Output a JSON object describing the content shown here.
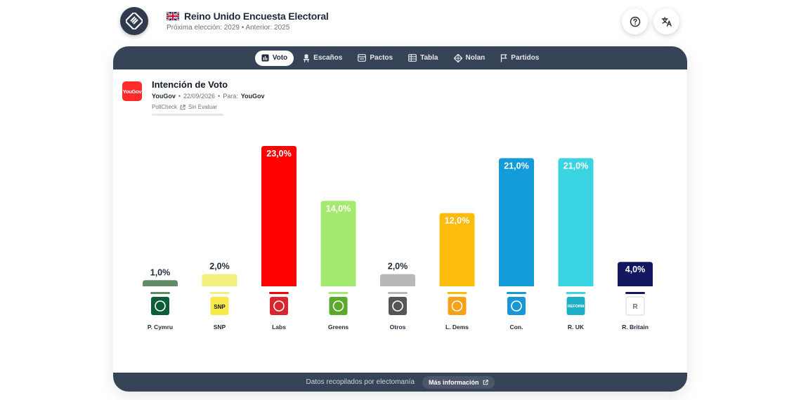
{
  "header": {
    "title": "Reino Unido Encuesta Electoral",
    "subtitle": "Próxima elección: 2029 • Anterior: 2025"
  },
  "icons": {
    "logo": "electomania-logo-icon",
    "help": "help-icon",
    "translate": "translate-icon",
    "flag": "uk-flag-icon"
  },
  "tabs": [
    {
      "label": "Voto",
      "icon": "bar-chart-icon",
      "active": true
    },
    {
      "label": "Escaños",
      "icon": "seat-icon",
      "active": false
    },
    {
      "label": "Pactos",
      "icon": "pacts-icon",
      "active": false
    },
    {
      "label": "Tabla",
      "icon": "table-icon",
      "active": false
    },
    {
      "label": "Nolan",
      "icon": "nolan-icon",
      "active": false
    },
    {
      "label": "Partidos",
      "icon": "flag-icon",
      "active": false
    }
  ],
  "poll": {
    "source_logo_text": "YouGov",
    "title": "Intención de Voto",
    "pollster": "YouGov",
    "date": "22/09/2026",
    "para_label": "Para:",
    "para_value": "YouGov",
    "pollcheck_label": "PollCheck",
    "pollcheck_status": "Sin Evaluar"
  },
  "chart_data": {
    "type": "bar",
    "title": "",
    "xlabel": "",
    "ylabel": "",
    "ylim": [
      0,
      23
    ],
    "grid": false,
    "categories": [
      "P. Cymru",
      "SNP",
      "Labs",
      "Greens",
      "Otros",
      "L. Dems",
      "Con.",
      "R. UK",
      "R. Britain"
    ],
    "values": [
      1.0,
      2.0,
      23.0,
      14.0,
      2.0,
      12.0,
      21.0,
      21.0,
      4.0
    ],
    "labels": [
      "1,0%",
      "2,0%",
      "23,0%",
      "14,0%",
      "2,0%",
      "12,0%",
      "21,0%",
      "21,0%",
      "4,0%"
    ],
    "colors": [
      "#5f8c64",
      "#f1ef7e",
      "#ff0000",
      "#a3ea6e",
      "#b8b8b8",
      "#fdbb0c",
      "#149bda",
      "#3bd4e3",
      "#12175f"
    ],
    "logo_colors": [
      "#0d5c3a",
      "#f7e94a",
      "#d7262e",
      "#5aa82c",
      "#555555",
      "#f5a219",
      "#1a96d6",
      "#1db0c8",
      "#ffffff"
    ],
    "logo_icons": [
      "plaid-cymru-logo-icon",
      "snp-logo-icon",
      "labour-rose-logo-icon",
      "greens-logo-icon",
      "otros-dots-icon",
      "lib-dems-bird-icon",
      "conservatives-tree-icon",
      "reform-arrow-logo-icon",
      "broken-image-icon"
    ],
    "logo_texts": [
      "",
      "SNP",
      "",
      "",
      "",
      "",
      "",
      "REFORM",
      "R"
    ]
  },
  "footer": {
    "text": "Datos recopilados por electomanía",
    "button": "Más información"
  }
}
